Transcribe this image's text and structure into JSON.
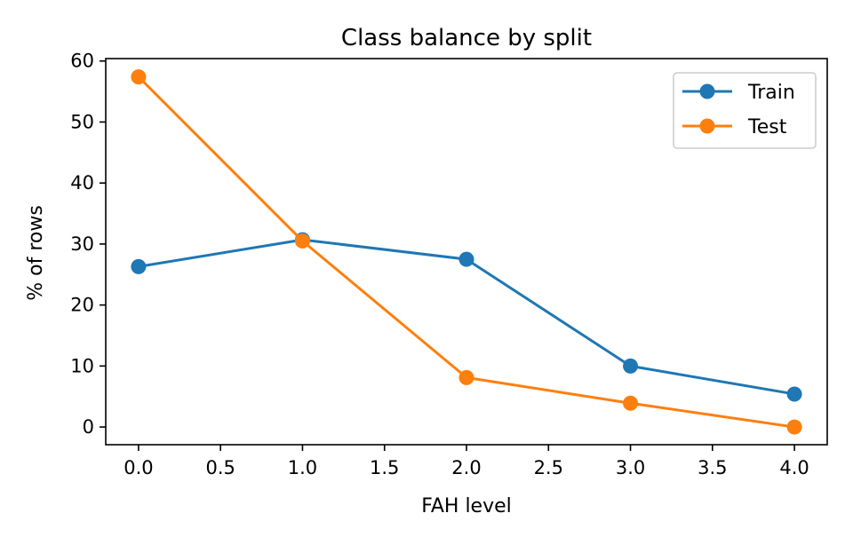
{
  "chart_data": {
    "type": "line",
    "title": "Class balance by split",
    "xlabel": "FAH level",
    "ylabel": "% of rows",
    "xlim": [
      -0.2,
      4.2
    ],
    "ylim": [
      -2.9,
      60.4
    ],
    "xticks": [
      0.0,
      0.5,
      1.0,
      1.5,
      2.0,
      2.5,
      3.0,
      3.5,
      4.0
    ],
    "xtick_labels": [
      "0.0",
      "0.5",
      "1.0",
      "1.5",
      "2.0",
      "2.5",
      "3.0",
      "3.5",
      "4.0"
    ],
    "yticks": [
      0,
      10,
      20,
      30,
      40,
      50,
      60
    ],
    "ytick_labels": [
      "0",
      "10",
      "20",
      "30",
      "40",
      "50",
      "60"
    ],
    "x": [
      0,
      1,
      2,
      3,
      4
    ],
    "series": [
      {
        "name": "Train",
        "color": "#1f77b4",
        "values": [
          26.3,
          30.7,
          27.5,
          10.0,
          5.4
        ]
      },
      {
        "name": "Test",
        "color": "#ff7f0e",
        "values": [
          57.4,
          30.5,
          8.1,
          3.9,
          0.0
        ]
      }
    ],
    "grid": false,
    "legend_position": "top-right"
  }
}
